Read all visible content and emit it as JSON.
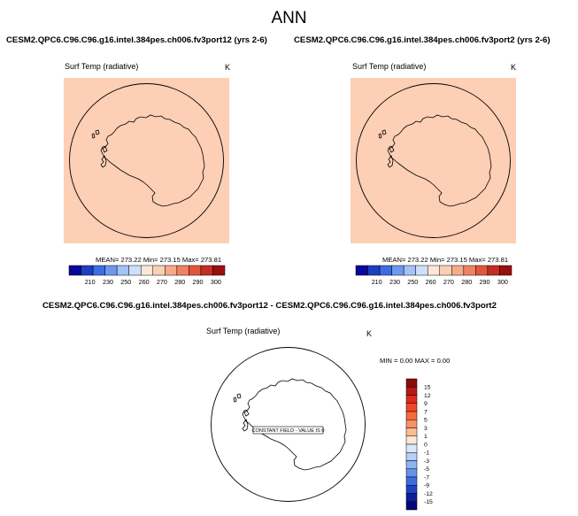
{
  "page_title": "ANN",
  "panels": [
    {
      "case": "CESM2.QPC6.C96.C96.g16.intel.384pes.ch006.fv3port12 (yrs 2-6)",
      "variable": "Surf Temp (radiative)",
      "units": "K",
      "stats": "MEAN= 273.22  Min= 273.15  Max= 273.81",
      "fill_color": "#fdcfb5"
    },
    {
      "case": "CESM2.QPC6.C96.C96.g16.intel.384pes.ch006.fv3port2 (yrs 2-6)",
      "variable": "Surf Temp (radiative)",
      "units": "K",
      "stats": "MEAN= 273.22  Min= 273.15  Max= 273.81",
      "fill_color": "#fdcfb5"
    }
  ],
  "top_colorbar": {
    "labels": [
      "210",
      "230",
      "250",
      "260",
      "270",
      "280",
      "290",
      "300"
    ],
    "colors": [
      "#08089a",
      "#1b3fc4",
      "#3d6de0",
      "#6e98ef",
      "#a3c3f7",
      "#cfe0fb",
      "#fde8d8",
      "#fbcfb3",
      "#f7aa8a",
      "#f08262",
      "#e2573c",
      "#c52e22",
      "#9a1010"
    ]
  },
  "diff_panel": {
    "title": "CESM2.QPC6.C96.C96.g16.intel.384pes.ch006.fv3port12 - CESM2.QPC6.C96.C96.g16.intel.384pes.ch006.fv3port2",
    "variable": "Surf Temp (radiative)",
    "units": "K",
    "stats": "MIN =  0.00 MAX =  0.00",
    "annotation": "CONSTANT FIELD - VALUE IS 0"
  },
  "diff_colorbar": {
    "labels": [
      "15",
      "12",
      "9",
      "7",
      "5",
      "3",
      "1",
      "0",
      "-1",
      "-3",
      "-5",
      "-7",
      "-9",
      "-12",
      "-15"
    ],
    "colors": [
      "#8c0a0a",
      "#b81818",
      "#dc2a1e",
      "#ef4826",
      "#f66b3d",
      "#fa9164",
      "#fcbc96",
      "#fde7d6",
      "#dbe8fb",
      "#b5cff7",
      "#8db3f2",
      "#6591ea",
      "#3d6ce0",
      "#1e42c2",
      "#0b1f96",
      "#06067a"
    ]
  }
}
